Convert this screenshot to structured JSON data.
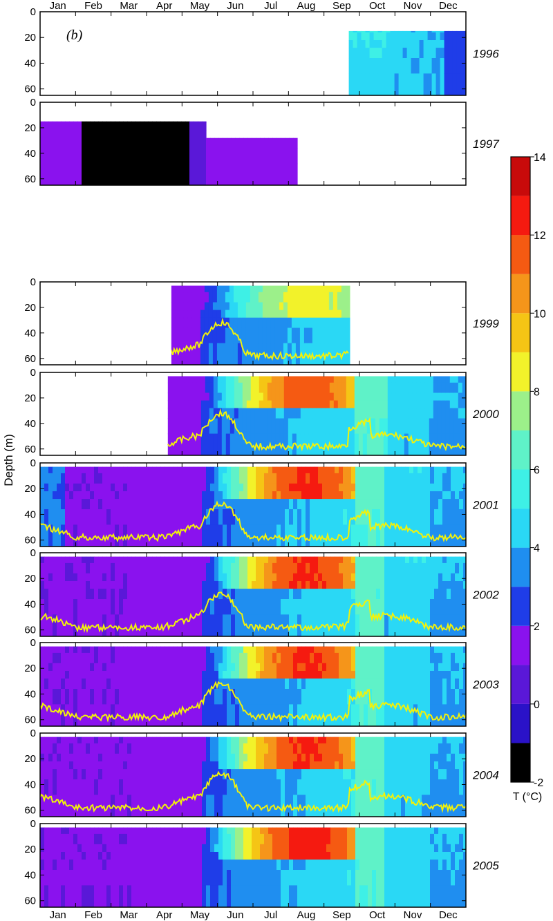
{
  "chart_data": {
    "type": "heatmap",
    "panel_label": "(b)",
    "ylabel": "Depth (m)",
    "x_months": [
      "Jan",
      "Feb",
      "Mar",
      "Apr",
      "May",
      "Jun",
      "Jul",
      "Aug",
      "Sep",
      "Oct",
      "Nov",
      "Dec"
    ],
    "y_ticks": [
      0,
      20,
      40,
      60
    ],
    "y_range": [
      0,
      65
    ],
    "colorbar": {
      "title": "T (°C)",
      "range": [
        -2,
        14
      ],
      "ticks": [
        -2,
        0,
        2,
        4,
        6,
        8,
        10,
        12,
        14
      ],
      "levels": [
        {
          "t": -2,
          "color": "#000000"
        },
        {
          "t": -1,
          "color": "#2a12c8"
        },
        {
          "t": 0,
          "color": "#5a18d8"
        },
        {
          "t": 1,
          "color": "#8a12ee"
        },
        {
          "t": 2,
          "color": "#1f3de8"
        },
        {
          "t": 3,
          "color": "#1f8ef0"
        },
        {
          "t": 4,
          "color": "#2ad8f5"
        },
        {
          "t": 5,
          "color": "#3ef0e6"
        },
        {
          "t": 6,
          "color": "#5ff2c8"
        },
        {
          "t": 7,
          "color": "#9cf08a"
        },
        {
          "t": 8,
          "color": "#f2f22a"
        },
        {
          "t": 9,
          "color": "#f5c515"
        },
        {
          "t": 10,
          "color": "#f5951a"
        },
        {
          "t": 11,
          "color": "#f55a12"
        },
        {
          "t": 12,
          "color": "#f51a10"
        },
        {
          "t": 13,
          "color": "#c80a0a"
        }
      ]
    },
    "panels": [
      {
        "year": "1996",
        "data_start_month": 8.7,
        "data_end_month": 12,
        "has_yellow_line": false
      },
      {
        "year": "1997",
        "data_start_month": 0,
        "data_end_month": 7.2,
        "has_yellow_line": false
      },
      {
        "year": "1999",
        "data_start_month": 3.7,
        "data_end_month": 8.7,
        "has_yellow_line": true
      },
      {
        "year": "2000",
        "data_start_month": 3.6,
        "data_end_month": 12,
        "has_yellow_line": true
      },
      {
        "year": "2001",
        "data_start_month": 0,
        "data_end_month": 12,
        "has_yellow_line": true
      },
      {
        "year": "2002",
        "data_start_month": 0,
        "data_end_month": 12,
        "has_yellow_line": true
      },
      {
        "year": "2003",
        "data_start_month": 0,
        "data_end_month": 12,
        "has_yellow_line": true
      },
      {
        "year": "2004",
        "data_start_month": 0,
        "data_end_month": 12,
        "has_yellow_line": true
      },
      {
        "year": "2005",
        "data_start_month": 0,
        "data_end_month": 12,
        "has_yellow_line": false
      }
    ]
  }
}
